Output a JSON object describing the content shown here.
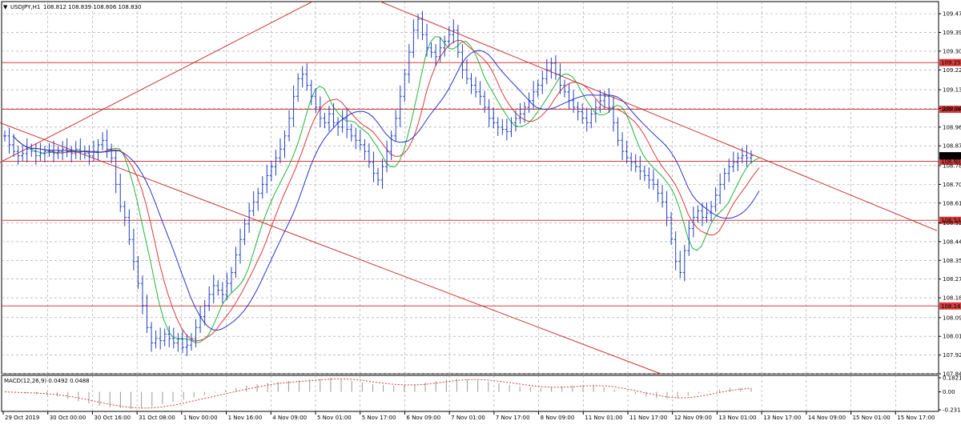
{
  "window": {
    "title": "USDJPY,H1",
    "ohlc": "108.812 108.839 108.806 108.830",
    "menu_icon": "triangle-down-icon"
  },
  "macd": {
    "label": "MACD(12,26,9) 0.0492 0.0488",
    "yticks": [
      "0.1821",
      "0.00",
      "-0.2319"
    ],
    "ylim": [
      -0.2319,
      0.1821
    ]
  },
  "price_axis": {
    "ticks": [
      "109.475",
      "109.390",
      "109.305",
      "109.220",
      "109.130",
      "109.045",
      "108.960",
      "108.875",
      "108.785",
      "108.700",
      "108.615",
      "108.525",
      "108.440",
      "108.355",
      "108.270",
      "108.185",
      "108.095",
      "108.010",
      "107.925",
      "107.840"
    ]
  },
  "time_axis": {
    "labels": [
      "29 Oct 2019",
      "30 Oct 00:00",
      "30 Oct 16:00",
      "31 Oct 08:00",
      "1 Nov 00:00",
      "1 Nov 16:00",
      "4 Nov 09:00",
      "5 Nov 01:00",
      "5 Nov 17:00",
      "6 Nov 09:00",
      "7 Nov 01:00",
      "7 Nov 17:00",
      "8 Nov 09:00",
      "11 Nov 01:00",
      "11 Nov 17:00",
      "12 Nov 09:00",
      "13 Nov 01:00",
      "13 Nov 17:00",
      "14 Nov 09:00",
      "15 Nov 01:00",
      "15 Nov 17:00"
    ]
  },
  "colors": {
    "background": "#ffffff",
    "grid": "#9a9a9a",
    "bar": "#1f3fbf",
    "level_line": "#d93b3b",
    "trend_line": "#c93636",
    "ma_fast": "#22b43a",
    "ma_mid": "#d93b3b",
    "ma_slow": "#2a35c9",
    "current_price_tag": "#000000"
  },
  "chart_data": [
    {
      "type": "candlestick",
      "symbol": "USDJPY",
      "timeframe": "H1",
      "ylim": [
        107.84,
        109.53
      ],
      "horizontal_levels": [
        {
          "value": "109.253",
          "y": 109.253
        },
        {
          "value": "109.041",
          "y": 109.041
        },
        {
          "value": "108.805",
          "y": 108.805
        },
        {
          "value": "108.537",
          "y": 108.537
        },
        {
          "value": "108.148",
          "y": 108.148
        }
      ],
      "current_price": "108.830",
      "trendlines": [
        {
          "from": [
            0,
            108.8
          ],
          "to": [
            390,
            109.53
          ]
        },
        {
          "from": [
            0,
            108.98
          ],
          "to": [
            825,
            107.84
          ]
        },
        {
          "from": [
            475,
            109.53
          ],
          "to": [
            1170,
            108.49
          ]
        }
      ],
      "close": [
        108.92,
        108.88,
        108.85,
        108.83,
        108.84,
        108.86,
        108.85,
        108.83,
        108.84,
        108.85,
        108.85,
        108.84,
        108.85,
        108.86,
        108.85,
        108.84,
        108.86,
        108.85,
        108.84,
        108.83,
        108.85,
        108.88,
        108.9,
        108.86,
        108.82,
        108.7,
        108.6,
        108.55,
        108.45,
        108.35,
        108.25,
        108.15,
        108.05,
        107.98,
        108.0,
        107.99,
        108.02,
        108.0,
        107.98,
        108.0,
        107.96,
        107.97,
        108.0,
        108.05,
        108.1,
        108.15,
        108.2,
        108.24,
        108.22,
        108.2,
        108.25,
        108.3,
        108.38,
        108.45,
        108.52,
        108.58,
        108.62,
        108.66,
        108.7,
        108.74,
        108.78,
        108.82,
        108.86,
        108.92,
        109.0,
        109.1,
        109.18,
        109.2,
        109.15,
        109.1,
        109.05,
        109.0,
        108.98,
        109.02,
        108.98,
        108.96,
        109.0,
        108.95,
        108.92,
        108.9,
        108.88,
        108.85,
        108.8,
        108.75,
        108.72,
        108.78,
        108.85,
        108.92,
        109.0,
        109.1,
        109.2,
        109.3,
        109.4,
        109.45,
        109.38,
        109.32,
        109.3,
        109.28,
        109.32,
        109.35,
        109.38,
        109.4,
        109.3,
        109.22,
        109.18,
        109.15,
        109.12,
        109.1,
        109.05,
        109.0,
        108.98,
        108.96,
        108.95,
        108.94,
        108.98,
        109.0,
        109.02,
        109.05,
        109.08,
        109.12,
        109.15,
        109.18,
        109.22,
        109.25,
        109.2,
        109.15,
        109.12,
        109.08,
        109.05,
        109.03,
        109.0,
        108.98,
        109.02,
        109.05,
        109.08,
        109.1,
        109.05,
        108.98,
        108.9,
        108.85,
        108.82,
        108.8,
        108.78,
        108.76,
        108.74,
        108.72,
        108.7,
        108.66,
        108.62,
        108.55,
        108.45,
        108.35,
        108.3,
        108.4,
        108.5,
        108.55,
        108.58,
        108.55,
        108.57,
        108.6,
        108.65,
        108.7,
        108.75,
        108.78,
        108.8,
        108.82,
        108.83,
        108.82,
        108.83
      ]
    },
    {
      "type": "line",
      "indicator": "MACD",
      "values": [
        0.0,
        -0.01,
        -0.02,
        -0.03,
        -0.04,
        -0.06,
        -0.09,
        -0.12,
        -0.15,
        -0.18,
        -0.2,
        -0.21,
        -0.22,
        -0.21,
        -0.19,
        -0.16,
        -0.13,
        -0.1,
        -0.07,
        -0.04,
        -0.01,
        0.02,
        0.05,
        0.08,
        0.1,
        0.12,
        0.13,
        0.14,
        0.15,
        0.16,
        0.17,
        0.18,
        0.16,
        0.14,
        0.12,
        0.1,
        0.09,
        0.08,
        0.09,
        0.1,
        0.12,
        0.14,
        0.16,
        0.17,
        0.16,
        0.15,
        0.13,
        0.11,
        0.09,
        0.07,
        0.06,
        0.05,
        0.06,
        0.07,
        0.08,
        0.09,
        0.08,
        0.06,
        0.03,
        0.0,
        -0.03,
        -0.06,
        -0.08,
        -0.09,
        -0.08,
        -0.05,
        -0.02,
        0.01,
        0.03,
        0.05,
        0.05,
        0.05
      ]
    }
  ]
}
